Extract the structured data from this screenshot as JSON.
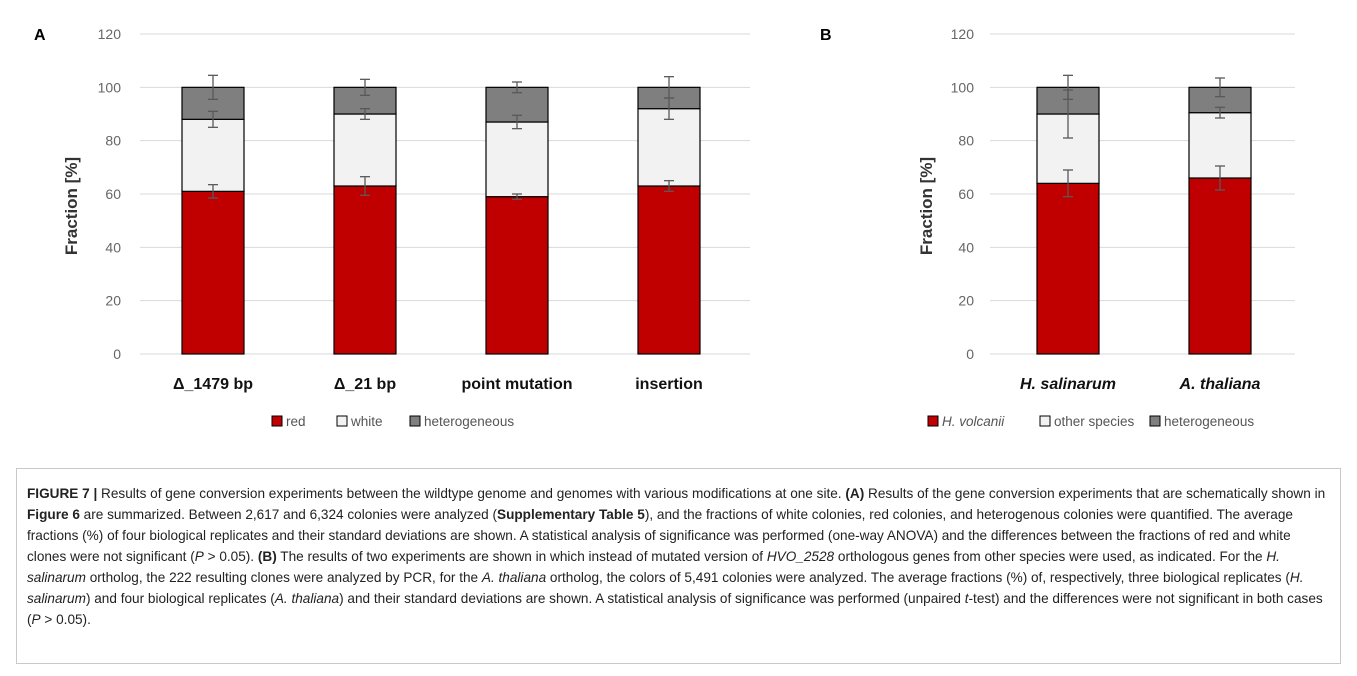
{
  "chart_data": [
    {
      "type": "bar",
      "stacked": true,
      "panel": "A",
      "ylabel": "Fraction [%]",
      "ylim": [
        0,
        120
      ],
      "yticks": [
        0,
        20,
        40,
        60,
        80,
        100,
        120
      ],
      "grid": true,
      "legend_position": "bottom",
      "categories": [
        "Δ_1479 bp",
        "Δ_21 bp",
        "point mutation",
        "insertion"
      ],
      "series": [
        {
          "name": "red",
          "color": "#c00000",
          "values": [
            61,
            63,
            59,
            63
          ],
          "error": [
            2.5,
            3.5,
            1,
            2
          ]
        },
        {
          "name": "white",
          "color": "#f2f2f2",
          "values": [
            27,
            27,
            28,
            29
          ],
          "error": [
            3,
            2,
            2.5,
            4
          ]
        },
        {
          "name": "heterogeneous",
          "color": "#7f7f7f",
          "values": [
            12,
            10,
            13,
            8
          ],
          "error": [
            4.5,
            3,
            2,
            4
          ]
        }
      ]
    },
    {
      "type": "bar",
      "stacked": true,
      "panel": "B",
      "ylabel": "Fraction [%]",
      "ylim": [
        0,
        120
      ],
      "yticks": [
        0,
        20,
        40,
        60,
        80,
        100,
        120
      ],
      "grid": true,
      "legend_position": "bottom",
      "categories": [
        "H. salinarum",
        "A. thaliana"
      ],
      "categories_italic": true,
      "series": [
        {
          "name": "H. volcanii",
          "name_italic": true,
          "color": "#c00000",
          "values": [
            64,
            66
          ],
          "error": [
            5,
            4.5
          ]
        },
        {
          "name": "other species",
          "color": "#f2f2f2",
          "values": [
            26,
            24.5
          ],
          "error": [
            9,
            2
          ]
        },
        {
          "name": "heterogeneous",
          "color": "#7f7f7f",
          "values": [
            10,
            9.5
          ],
          "error": [
            4.5,
            3.5
          ]
        }
      ]
    }
  ],
  "caption": {
    "figure_label": "FIGURE 7 |",
    "segments": [
      {
        "t": " Results of gene conversion experiments between the wildtype genome and genomes with various modifications at one site. ",
        "s": ""
      },
      {
        "t": "(A)",
        "s": "b"
      },
      {
        "t": " Results of the gene conversion experiments that are schematically shown in ",
        "s": ""
      },
      {
        "t": "Figure 6",
        "s": "b"
      },
      {
        "t": " are summarized. Between 2,617 and 6,324 colonies were analyzed (",
        "s": ""
      },
      {
        "t": "Supplementary Table 5",
        "s": "b"
      },
      {
        "t": "), and the fractions of white colonies, red colonies, and heterogenous colonies were quantified. The average fractions (%) of four biological replicates and their standard deviations are shown. A statistical analysis of significance was performed (one-way ANOVA) and the differences between the fractions of red and white clones were not significant (",
        "s": ""
      },
      {
        "t": "P",
        "s": "i"
      },
      {
        "t": " > 0.05). ",
        "s": ""
      },
      {
        "t": "(B)",
        "s": "b"
      },
      {
        "t": " The results of two experiments are shown in which instead of mutated version of ",
        "s": ""
      },
      {
        "t": "HVO_2528",
        "s": "i"
      },
      {
        "t": " orthologous genes from other species were used, as indicated. For the ",
        "s": ""
      },
      {
        "t": "H. salinarum",
        "s": "i"
      },
      {
        "t": " ortholog, the 222 resulting clones were analyzed by PCR, for the ",
        "s": ""
      },
      {
        "t": "A. thaliana",
        "s": "i"
      },
      {
        "t": " ortholog, the colors of 5,491 colonies were analyzed. The average fractions (%) of, respectively, three biological replicates (",
        "s": ""
      },
      {
        "t": "H. salinarum",
        "s": "i"
      },
      {
        "t": ") and four biological replicates (",
        "s": ""
      },
      {
        "t": "A. thaliana",
        "s": "i"
      },
      {
        "t": ") and their standard deviations are shown. A statistical analysis of significance was performed (unpaired ",
        "s": ""
      },
      {
        "t": "t",
        "s": "i"
      },
      {
        "t": "-test) and the differences were not significant in both cases (",
        "s": ""
      },
      {
        "t": "P",
        "s": "i"
      },
      {
        "t": " > 0.05).",
        "s": ""
      }
    ]
  }
}
